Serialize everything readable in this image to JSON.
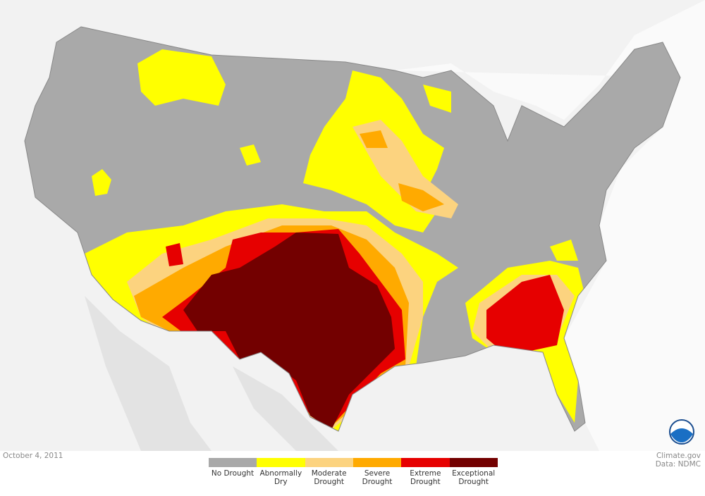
{
  "date": "October 4, 2011",
  "credit": {
    "site": "Climate.gov",
    "source": "Data: NDMC"
  },
  "legend": [
    {
      "label": "No Drought",
      "color": "#a9a9a9"
    },
    {
      "label": "Abnormally Dry",
      "color": "#ffff00"
    },
    {
      "label": "Moderate Drought",
      "color": "#fcd37f"
    },
    {
      "label": "Severe Drought",
      "color": "#ffaa00"
    },
    {
      "label": "Extreme Drought",
      "color": "#e60000"
    },
    {
      "label": "Exceptional Drought",
      "color": "#730000"
    }
  ]
}
